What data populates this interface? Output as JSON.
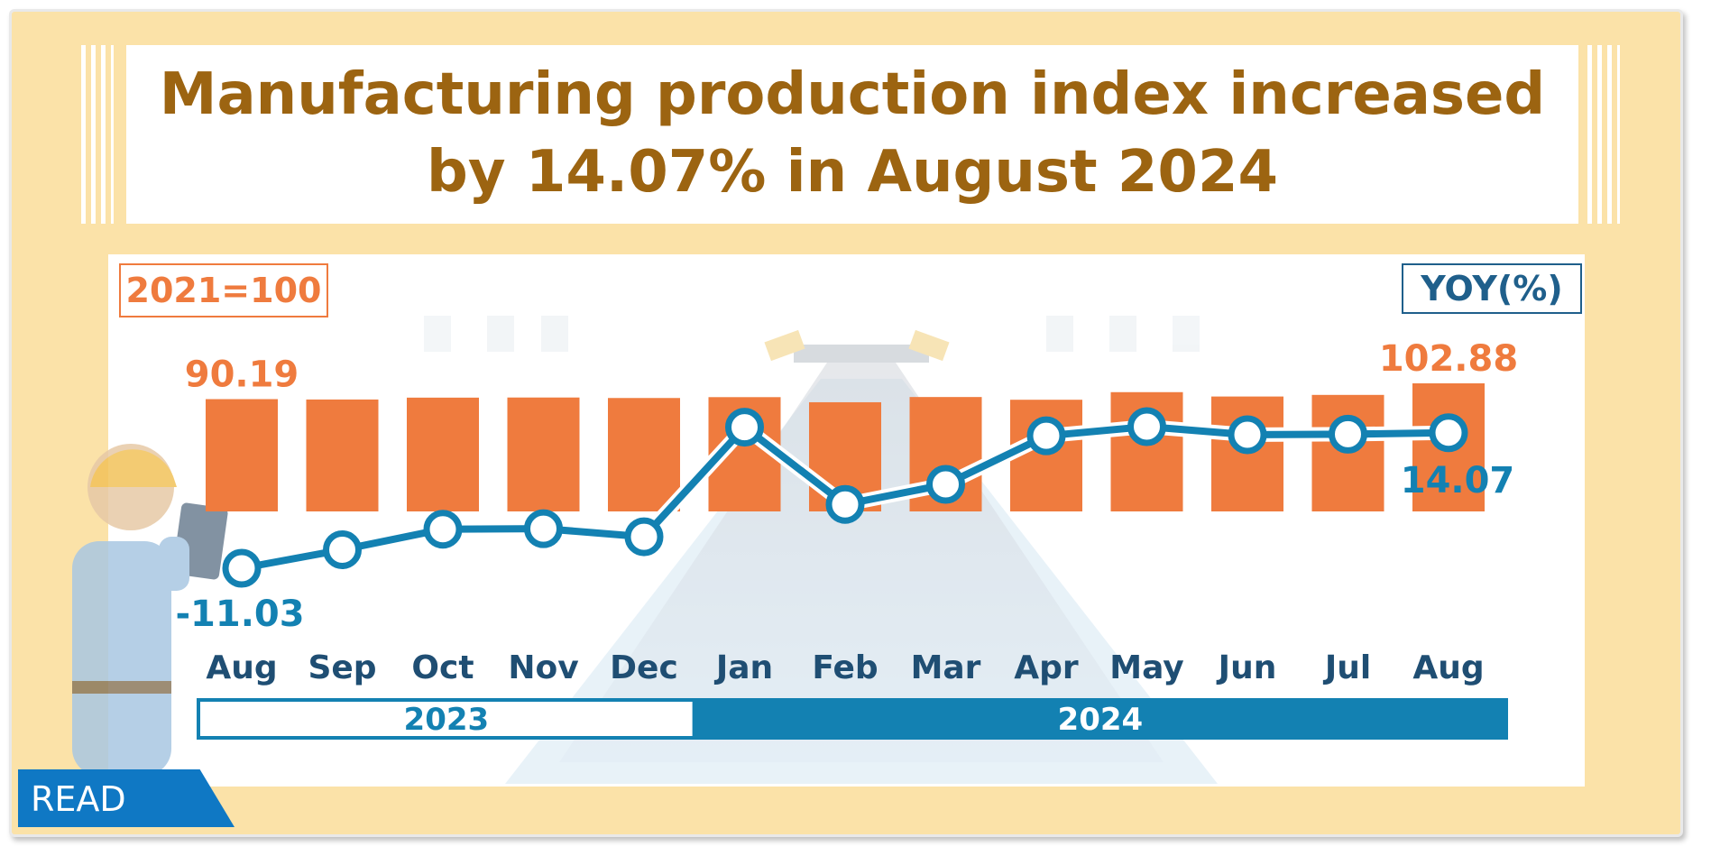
{
  "header": {
    "title_line1": "Manufacturing production index increased",
    "title_line2": "by 14.07% in August 2024"
  },
  "legend": {
    "index_base": "2021=100",
    "yoy_unit": "YOY(%)"
  },
  "badge": {
    "read_label": "READ"
  },
  "colors": {
    "bar": "#ef7b3e",
    "line": "#1381b2",
    "title": "#9c6411",
    "month_label": "#1f4e73",
    "year_2024": "#1381b2"
  },
  "chart_data": {
    "type": "bar+line",
    "categories": [
      "Aug",
      "Sep",
      "Oct",
      "Nov",
      "Dec",
      "Jan",
      "Feb",
      "Mar",
      "Apr",
      "May",
      "Jun",
      "Jul",
      "Aug"
    ],
    "year_groups": [
      {
        "label": "2023",
        "count": 5
      },
      {
        "label": "2024",
        "count": 8
      }
    ],
    "series": [
      {
        "name": "2021=100",
        "type": "bar",
        "values": [
          90.19,
          89.9,
          91.4,
          91.5,
          91.1,
          91.8,
          87.7,
          91.9,
          89.7,
          95.8,
          92.3,
          93.6,
          102.88
        ],
        "labels": [
          {
            "index": 0,
            "text": "90.19"
          },
          {
            "index": 12,
            "text": "102.88"
          }
        ]
      },
      {
        "name": "YOY(%)",
        "type": "line",
        "values": [
          -11.03,
          -7.6,
          -3.8,
          -3.7,
          -5.2,
          15.1,
          0.8,
          4.5,
          13.5,
          15.2,
          13.7,
          13.8,
          14.07
        ],
        "labels": [
          {
            "index": 0,
            "text": "-11.03"
          },
          {
            "index": 12,
            "text": "14.07"
          }
        ]
      }
    ]
  }
}
